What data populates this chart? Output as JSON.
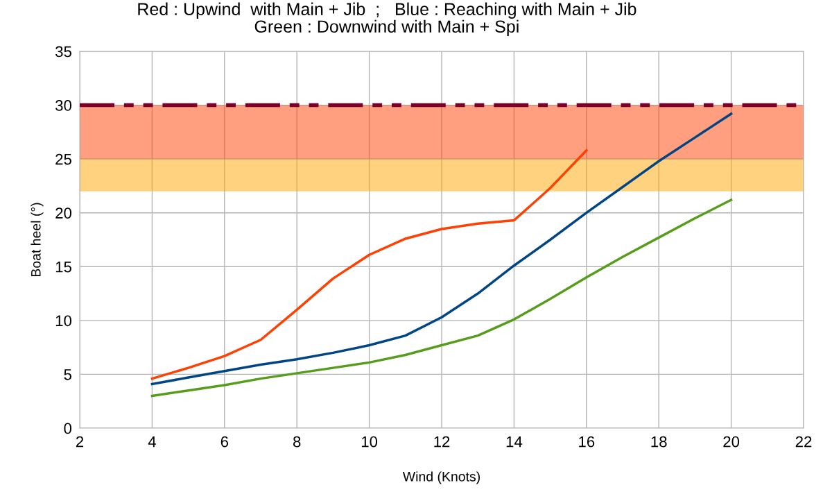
{
  "chart_data": {
    "type": "line",
    "title": "Red : Upwind  with Main + Jib  ;   Blue : Reaching with Main + Jib\nGreen : Downwind with Main + Spi",
    "xlabel": "Wind (Knots)",
    "ylabel": "Boat heel (°)",
    "series": [
      {
        "color": "#ff4000",
        "x": [
          4,
          5,
          6,
          7,
          8,
          9,
          10,
          11,
          12,
          13,
          14,
          15,
          16
        ],
        "values": [
          4.6,
          5.6,
          6.7,
          8.2,
          11.0,
          13.9,
          16.1,
          17.6,
          18.5,
          19.0,
          19.3,
          22.3,
          25.8
        ]
      },
      {
        "color": "#004586",
        "x": [
          4,
          5,
          6,
          7,
          8,
          9,
          10,
          11,
          12,
          13,
          14,
          15,
          16,
          17,
          18,
          19,
          20
        ],
        "values": [
          4.1,
          4.7,
          5.3,
          5.9,
          6.4,
          7.0,
          7.7,
          8.6,
          10.3,
          12.5,
          15.1,
          17.5,
          20.0,
          22.4,
          24.8,
          27.0,
          29.2
        ]
      },
      {
        "color": "#579d1c",
        "x": [
          4,
          5,
          6,
          7,
          8,
          9,
          10,
          11,
          12,
          13,
          14,
          15,
          16,
          17,
          18,
          19,
          20
        ],
        "values": [
          3.0,
          3.5,
          4.0,
          4.6,
          5.1,
          5.6,
          6.1,
          6.8,
          7.7,
          8.6,
          10.1,
          12.0,
          14.0,
          15.9,
          17.7,
          19.5,
          21.2
        ]
      }
    ],
    "xlim": [
      2,
      22
    ],
    "xticks": [
      2,
      4,
      6,
      8,
      10,
      12,
      14,
      16,
      18,
      20,
      22
    ],
    "ylim": [
      0,
      35
    ],
    "yticks": [
      0,
      5,
      10,
      15,
      20,
      25,
      30,
      35
    ],
    "grid": true,
    "marker": "none",
    "line_style": "solid",
    "bands": [
      {
        "axis": "y",
        "from": 22,
        "to": 25,
        "color": "#ffa500"
      },
      {
        "axis": "y",
        "from": 25,
        "to": 30,
        "color": "#ff4000"
      }
    ],
    "ref_lines": [
      {
        "axis": "y",
        "value": 30,
        "color": "#7b0029",
        "line_style": "dashed"
      }
    ]
  }
}
